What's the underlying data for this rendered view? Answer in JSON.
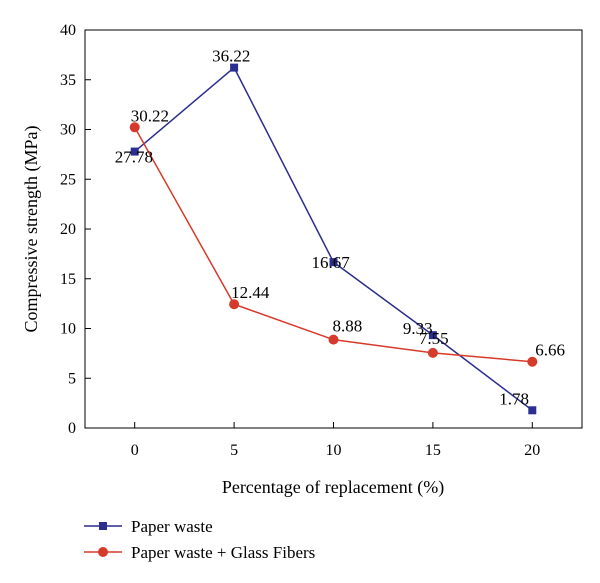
{
  "chart_data": {
    "type": "line",
    "title": "",
    "xlabel": "Percentage of replacement (%)",
    "ylabel": "Compressive strength (MPa)",
    "x": [
      0,
      5,
      10,
      15,
      20
    ],
    "xticks": [
      0,
      5,
      10,
      15,
      20
    ],
    "yticks": [
      0,
      5,
      10,
      15,
      20,
      25,
      30,
      35,
      40
    ],
    "xlim": [
      -2.5,
      22.5
    ],
    "ylim": [
      0,
      40
    ],
    "grid": false,
    "legend_position": "bottom-left",
    "series": [
      {
        "name": "Paper waste",
        "values": [
          27.78,
          36.22,
          16.67,
          9.33,
          1.78
        ],
        "labels": [
          "27.78",
          "36.22",
          "16.67",
          "9.33",
          "1.78"
        ],
        "color": "#2b2d8f",
        "marker": "square"
      },
      {
        "name": "Paper waste + Glass Fibers",
        "values": [
          30.22,
          12.44,
          8.88,
          7.55,
          6.66
        ],
        "labels": [
          "30.22",
          "12.44",
          "8.88",
          "7.55",
          "6.66"
        ],
        "color": "#d63a2a",
        "marker": "circle"
      }
    ]
  }
}
